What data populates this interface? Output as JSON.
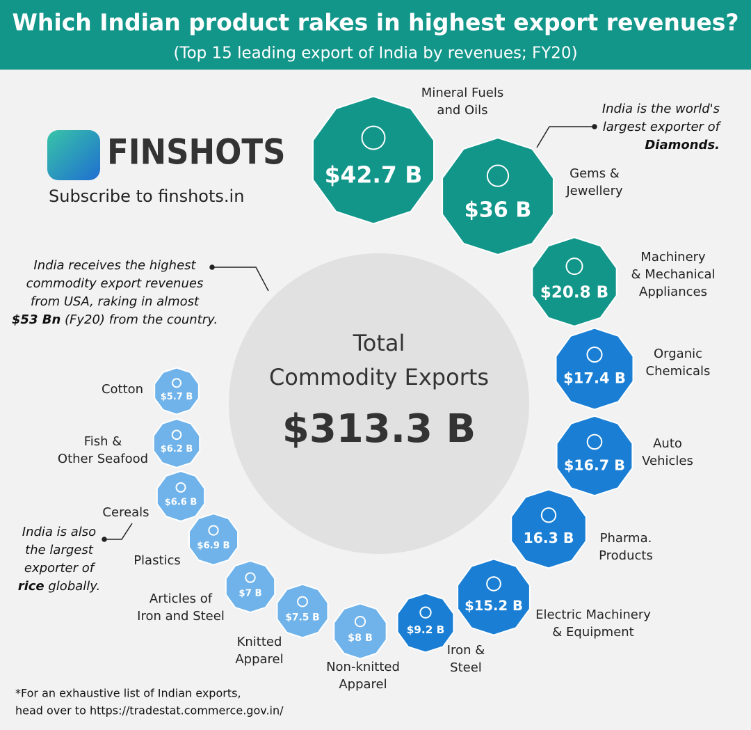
{
  "header": {
    "title": "Which Indian product rakes in highest export revenues?",
    "subtitle": "(Top 15 leading export of India by revenues; FY20)"
  },
  "brand": {
    "name": "FINSHOTS",
    "tagline": "Subscribe to finshots.in"
  },
  "total": {
    "lines": [
      "Total",
      "Commodity Exports"
    ],
    "value": "$313.3 B"
  },
  "items": [
    {
      "name": [
        "Mineral Fuels",
        "and Oils"
      ],
      "value": 42.7,
      "value_label": "$42.7 B",
      "color": "#13968a"
    },
    {
      "name": [
        "Gems &",
        "Jewellery"
      ],
      "value": 36,
      "value_label": "$36 B",
      "color": "#13968a"
    },
    {
      "name": [
        "Machinery",
        "& Mechanical",
        "Appliances"
      ],
      "value": 20.8,
      "value_label": "$20.8 B",
      "color": "#13968a"
    },
    {
      "name": [
        "Organic",
        "Chemicals"
      ],
      "value": 17.4,
      "value_label": "$17.4 B",
      "color": "#1a7fd4"
    },
    {
      "name": [
        "Auto",
        "Vehicles"
      ],
      "value": 16.7,
      "value_label": "$16.7 B",
      "color": "#1a7fd4"
    },
    {
      "name": [
        "Pharma.",
        "Products"
      ],
      "value": 16.3,
      "value_label": "16.3 B",
      "color": "#1a7fd4"
    },
    {
      "name": [
        "Electric Machinery",
        "& Equipment"
      ],
      "value": 15.2,
      "value_label": "$15.2 B",
      "color": "#1a7fd4"
    },
    {
      "name": [
        "Iron &",
        "Steel"
      ],
      "value": 9.2,
      "value_label": "$9.2 B",
      "color": "#1a7fd4"
    },
    {
      "name": [
        "Non-knitted",
        "Apparel"
      ],
      "value": 8,
      "value_label": "$8 B",
      "color": "#6fb3ea"
    },
    {
      "name": [
        "Knitted",
        "Apparel"
      ],
      "value": 7.5,
      "value_label": "$7.5 B",
      "color": "#6fb3ea"
    },
    {
      "name": [
        "Articles of",
        "Iron and Steel"
      ],
      "value": 7,
      "value_label": "$7 B",
      "color": "#6fb3ea"
    },
    {
      "name": [
        "Plastics"
      ],
      "value": 6.9,
      "value_label": "$6.9 B",
      "color": "#6fb3ea"
    },
    {
      "name": [
        "Cereals"
      ],
      "value": 6.6,
      "value_label": "$6.6 B",
      "color": "#6fb3ea"
    },
    {
      "name": [
        "Fish &",
        "Other Seafood"
      ],
      "value": 6.2,
      "value_label": "$6.2 B",
      "color": "#6fb3ea"
    },
    {
      "name": [
        "Cotton"
      ],
      "value": 5.7,
      "value_label": "$5.7 B",
      "color": "#6fb3ea"
    }
  ],
  "annotations": [
    [
      [
        {
          "text": "India is  the world's",
          "bold": false
        }
      ],
      [
        {
          "text": "largest exporter of",
          "bold": false
        }
      ],
      [
        {
          "text": "Diamonds.",
          "bold": true
        }
      ]
    ],
    [
      [
        {
          "text": "India receives the highest",
          "bold": false
        }
      ],
      [
        {
          "text": "commodity export revenues",
          "bold": false
        }
      ],
      [
        {
          "text": "from USA, raking in almost",
          "bold": false
        }
      ],
      [
        {
          "text": "$53 Bn",
          "bold": true
        },
        {
          "text": " (Fy20) from the country.",
          "bold": false
        }
      ]
    ],
    [
      [
        {
          "text": "India is also",
          "bold": false
        }
      ],
      [
        {
          "text": "the largest",
          "bold": false
        }
      ],
      [
        {
          "text": "exporter of",
          "bold": false
        }
      ],
      [
        {
          "text": "rice",
          "bold": true
        },
        {
          "text": " globally.",
          "bold": false
        }
      ]
    ]
  ],
  "footnote": [
    "*For an exhaustive list of Indian exports,",
    "head over to https://tradestat.commerce.gov.in/"
  ]
}
